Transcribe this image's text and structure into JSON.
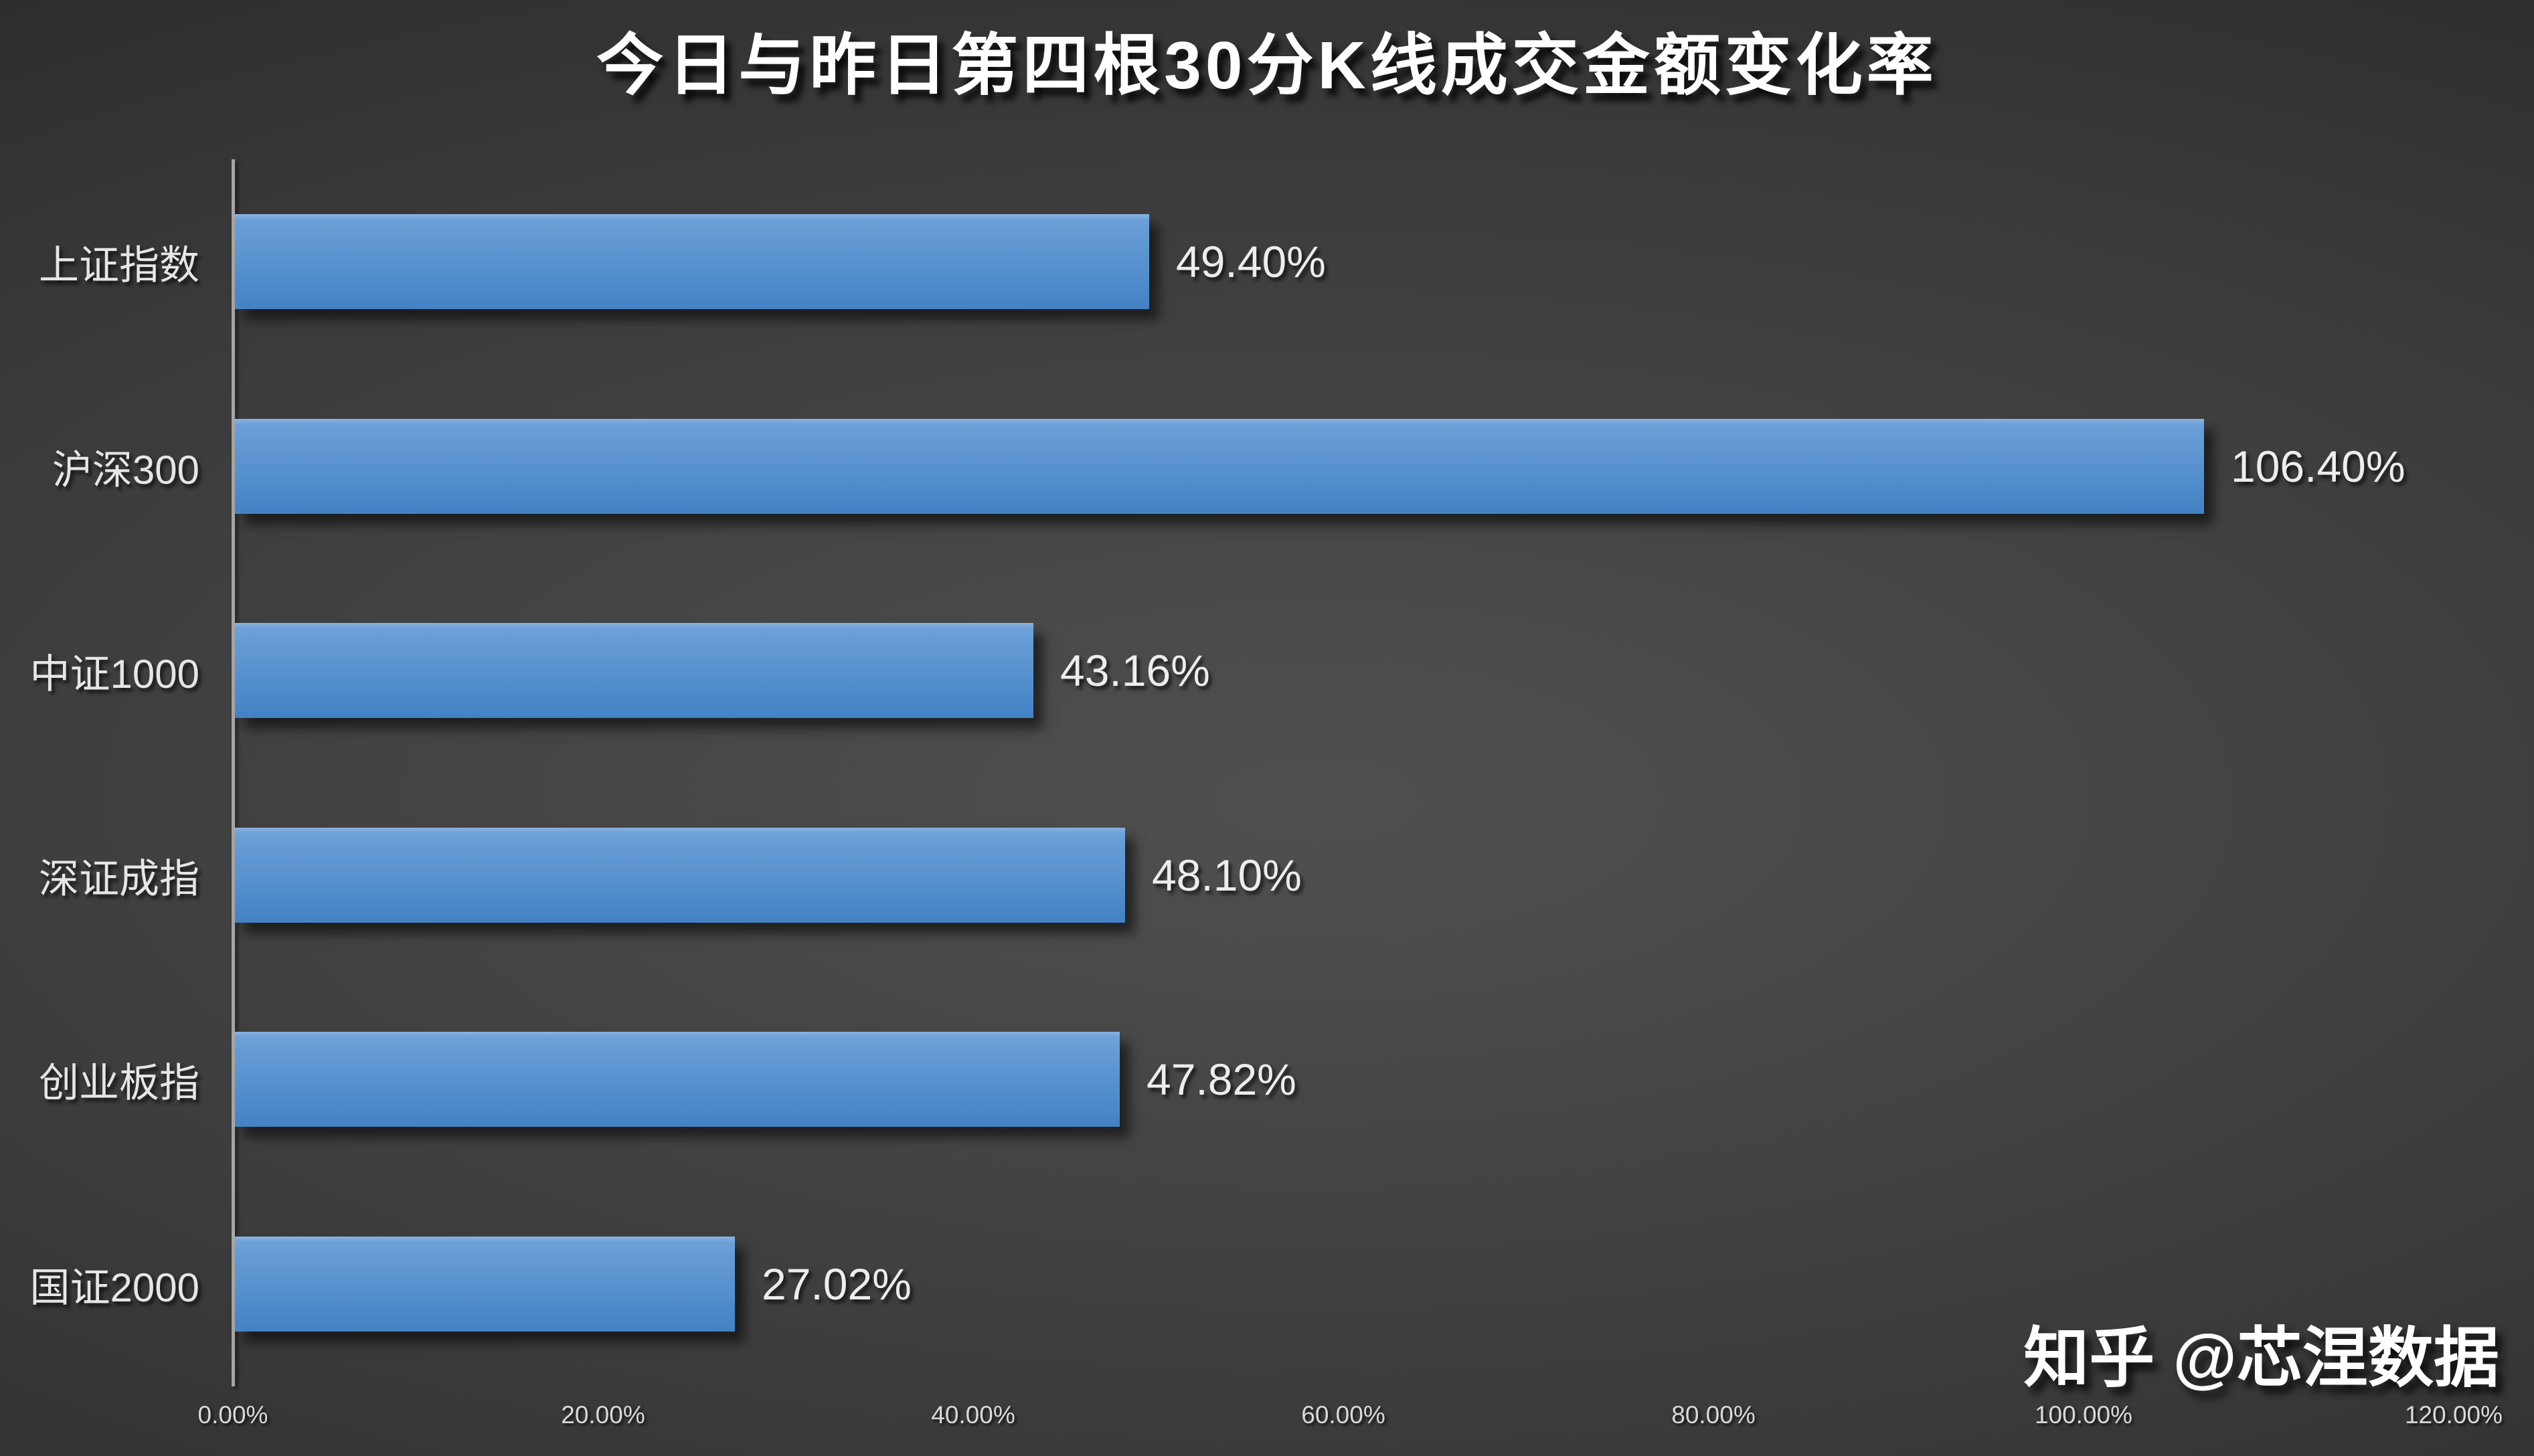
{
  "title": "今日与昨日第四根30分K线成交金额变化率",
  "watermark": "知乎 @芯涅数据",
  "colors": {
    "bar_top": "#6CA0D8",
    "bar_bottom": "#4282C4",
    "bar_edge": "#8AB2E0",
    "axis_line": "#a6a6a6",
    "background_center": "#505050",
    "background_edge": "#242424",
    "text": "#ededed"
  },
  "chart_data": {
    "type": "bar",
    "orientation": "horizontal",
    "title": "今日与昨日第四根30分K线成交金额变化率",
    "categories": [
      "上证指数",
      "沪深300",
      "中证1000",
      "深证成指",
      "创业板指",
      "国证2000"
    ],
    "values": [
      49.4,
      106.4,
      43.16,
      48.1,
      47.82,
      27.02
    ],
    "value_labels": [
      "49.40%",
      "106.40%",
      "43.16%",
      "48.10%",
      "47.82%",
      "27.02%"
    ],
    "xlabel": "",
    "ylabel": "",
    "xlim": [
      0,
      120
    ],
    "x_ticks": [
      "0.00%",
      "20.00%",
      "40.00%",
      "60.00%",
      "80.00%",
      "100.00%",
      "120.00%"
    ],
    "grid": false,
    "legend": false,
    "data_labels": "outside-end"
  }
}
